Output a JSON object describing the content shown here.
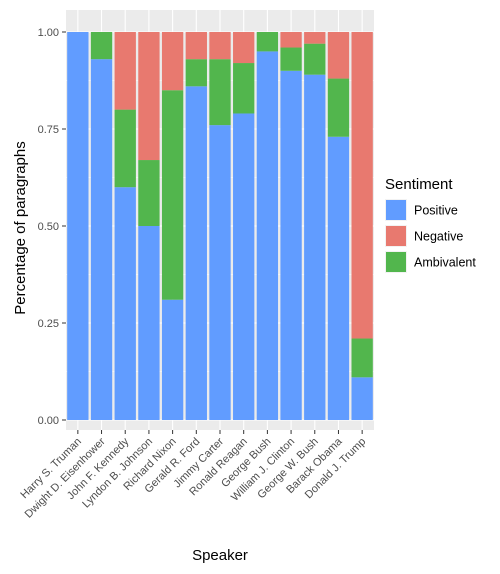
{
  "chart_data": {
    "type": "bar",
    "stacked": true,
    "xlabel": "Speaker",
    "ylabel": "Percentage of paragraphs",
    "ylim": [
      0,
      1
    ],
    "y_ticks": [
      "0.00",
      "0.25",
      "0.50",
      "0.75",
      "1.00"
    ],
    "y_tick_values": [
      0,
      0.25,
      0.5,
      0.75,
      1.0
    ],
    "grid": true,
    "legend_position": "right",
    "legend_title": "Sentiment",
    "categories": [
      "Harry S. Truman",
      "Dwight D. Eisenhower",
      "John F. Kennedy",
      "Lyndon B. Johnson",
      "Richard Nixon",
      "Gerald R. Ford",
      "Jimmy Carter",
      "Ronald Reagan",
      "George Bush",
      "William J. Clinton",
      "George W. Bush",
      "Barack Obama",
      "Donald J. Trump"
    ],
    "series": [
      {
        "name": "Positive",
        "color": "#619CFF",
        "values": [
          1.0,
          0.93,
          0.6,
          0.5,
          0.31,
          0.86,
          0.76,
          0.79,
          0.95,
          0.9,
          0.89,
          0.73,
          0.11
        ]
      },
      {
        "name": "Ambivalent",
        "color": "#52B64D",
        "values": [
          0.0,
          0.07,
          0.2,
          0.17,
          0.54,
          0.07,
          0.17,
          0.13,
          0.05,
          0.06,
          0.08,
          0.15,
          0.1
        ]
      },
      {
        "name": "Negative",
        "color": "#E8796F",
        "values": [
          0.0,
          0.0,
          0.2,
          0.33,
          0.15,
          0.07,
          0.07,
          0.08,
          0.0,
          0.04,
          0.03,
          0.12,
          0.79
        ]
      }
    ],
    "legend_order": [
      "Positive",
      "Negative",
      "Ambivalent"
    ],
    "panel_background": "#EBEBEB",
    "grid_color": "#FFFFFF"
  }
}
